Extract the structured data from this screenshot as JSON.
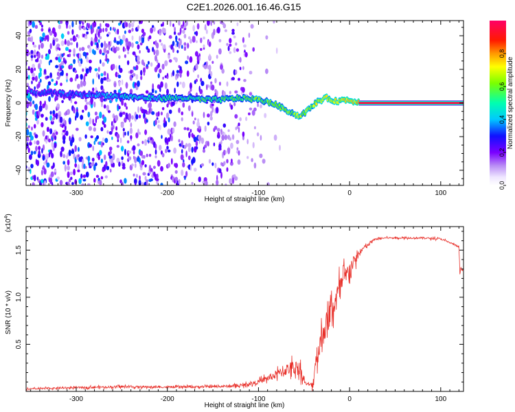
{
  "figure_title": "C2E1.2026.001.16.46.G15",
  "chart_data": [
    {
      "type": "heatmap",
      "title": "C2E1.2026.001.16.46.G15",
      "xlabel": "Height of straight line (km)",
      "ylabel": "Frequency (Hz)",
      "xlim": [
        -355,
        125
      ],
      "ylim": [
        -49,
        49
      ],
      "x_ticks": [
        -300,
        -200,
        -100,
        0,
        100
      ],
      "x_tick_labels": [
        "-300",
        "-200",
        "-100",
        "0",
        "100"
      ],
      "y_ticks": [
        -40,
        -20,
        0,
        20,
        40
      ],
      "y_tick_labels": [
        "-40",
        "-20",
        "0",
        "20",
        "40"
      ],
      "colorbar": {
        "label": "Normalized spectral amplitude",
        "range": [
          0,
          1
        ],
        "ticks": [
          0.0,
          0.2,
          0.4,
          0.6,
          0.8
        ],
        "tick_labels": [
          "0.0",
          "0.2",
          "0.4",
          "0.6",
          "0.8"
        ]
      },
      "ridge": {
        "x": [
          -350,
          -330,
          -300,
          -280,
          -250,
          -220,
          -200,
          -180,
          -160,
          -140,
          -120,
          -100,
          -85,
          -70,
          -55,
          -45,
          -35,
          -25,
          -15,
          -5,
          5,
          10
        ],
        "frequency": [
          6,
          6,
          5,
          5,
          4,
          3,
          3,
          3,
          2,
          2,
          3,
          2,
          0,
          -4,
          -8,
          -4,
          1,
          3,
          1,
          2,
          1,
          1
        ]
      },
      "constant_line": {
        "x": [
          10,
          125
        ],
        "frequency": 0,
        "amplitude": 0.95
      },
      "noise_amplitude": {
        "x": [
          -355,
          -300,
          -250,
          -200,
          -150,
          -120,
          -100,
          -60,
          10
        ],
        "amplitude": [
          0.45,
          0.4,
          0.4,
          0.35,
          0.3,
          0.25,
          0.15,
          0.05,
          0.0
        ]
      }
    },
    {
      "type": "line",
      "xlabel": "Height of straight line (km)",
      "ylabel": "SNR (10 * v/v)",
      "y_scale_label": "(x10",
      "y_scale_exponent": "4",
      "y_scale_suffix": ")",
      "xlim": [
        -355,
        125
      ],
      "ylim": [
        0,
        17500
      ],
      "x_ticks": [
        -300,
        -200,
        -100,
        0,
        100
      ],
      "x_tick_labels": [
        "-300",
        "-200",
        "-100",
        "0",
        "100"
      ],
      "y_ticks": [
        5000,
        10000,
        15000
      ],
      "y_tick_labels": [
        "0.5",
        "1.0",
        "1.5"
      ],
      "color": "#e8302a",
      "series": [
        {
          "name": "SNR",
          "x": [
            -355,
            -300,
            -250,
            -200,
            -150,
            -120,
            -100,
            -80,
            -65,
            -55,
            -48,
            -43,
            -40,
            -38,
            -30,
            -20,
            -10,
            0,
            10,
            15,
            20,
            25,
            30,
            40,
            60,
            80,
            100,
            115,
            120,
            121,
            122,
            123,
            125
          ],
          "y": [
            250,
            400,
            500,
            450,
            500,
            600,
            1000,
            1800,
            2500,
            2500,
            800,
            700,
            700,
            3000,
            6000,
            8500,
            11000,
            13000,
            14500,
            15200,
            15500,
            16000,
            16200,
            16300,
            16300,
            16300,
            16200,
            15600,
            15300,
            12500,
            13000,
            12900,
            12900
          ],
          "spread": [
            150,
            200,
            250,
            200,
            250,
            300,
            500,
            1000,
            1500,
            1800,
            300,
            300,
            1500,
            2500,
            3000,
            3000,
            3000,
            2000,
            800,
            500,
            400,
            300,
            200,
            200,
            200,
            200,
            200,
            200,
            200,
            300,
            200,
            200,
            200
          ]
        }
      ]
    }
  ]
}
